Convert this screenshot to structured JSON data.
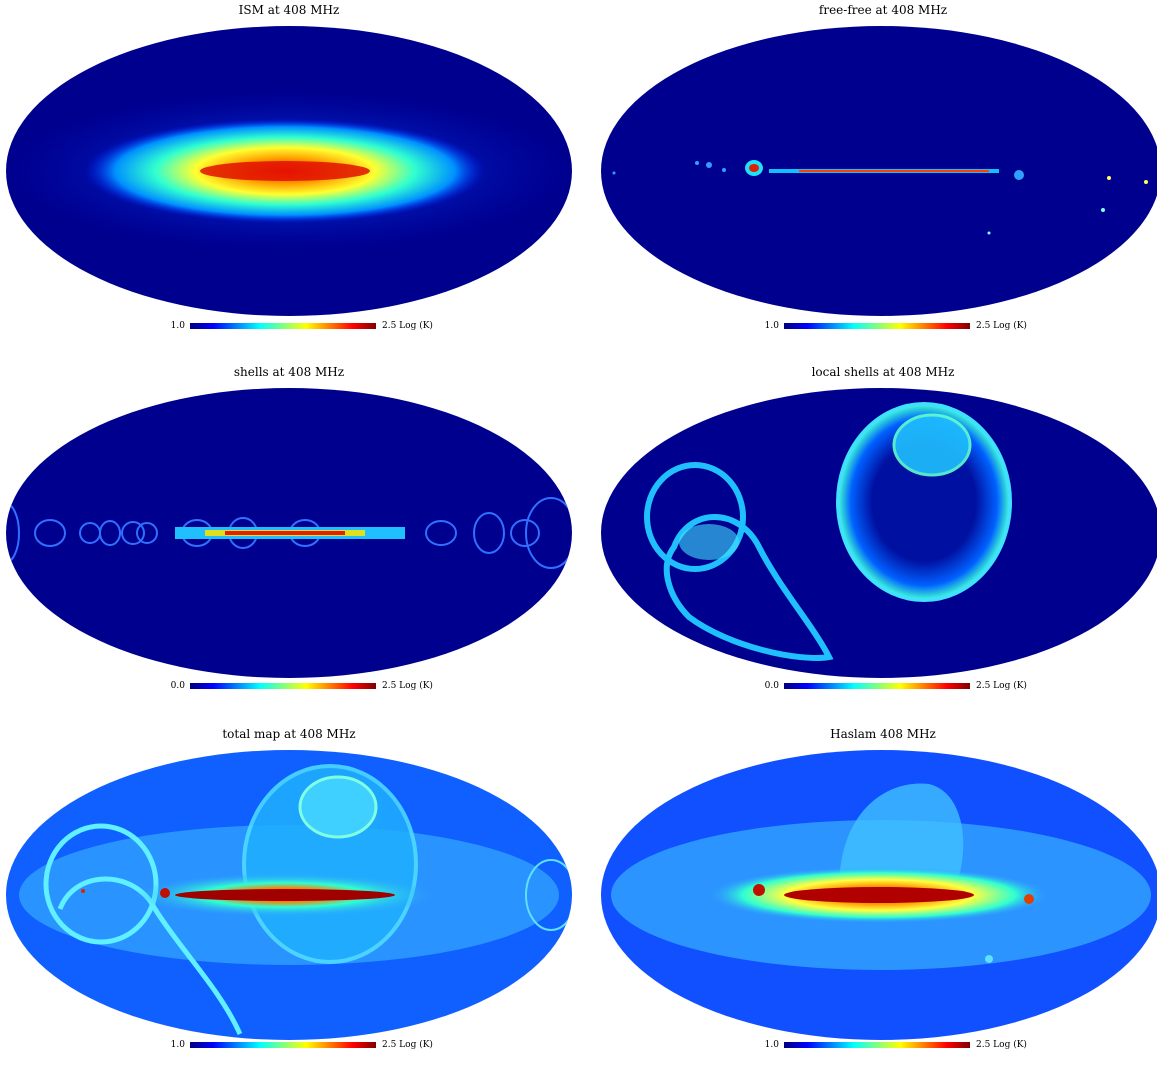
{
  "panels": [
    {
      "id": "ism",
      "title": "ISM at 408 MHz",
      "cb_min": "1.0",
      "cb_max": "2.5 Log (K)"
    },
    {
      "id": "freefree",
      "title": "free-free at 408 MHz",
      "cb_min": "1.0",
      "cb_max": "2.5 Log (K)"
    },
    {
      "id": "shells",
      "title": "shells at 408 MHz",
      "cb_min": "0.0",
      "cb_max": "2.5 Log (K)"
    },
    {
      "id": "local",
      "title": "local shells at 408 MHz",
      "cb_min": "0.0",
      "cb_max": "2.5 Log (K)"
    },
    {
      "id": "total",
      "title": "total map at 408 MHz",
      "cb_min": "1.0",
      "cb_max": "2.5 Log (K)"
    },
    {
      "id": "haslam",
      "title": "Haslam 408 MHz",
      "cb_min": "1.0",
      "cb_max": "2.5 Log (K)"
    }
  ],
  "colormap": [
    "#00007f",
    "#0000ff",
    "#007fff",
    "#00ffff",
    "#7fff7f",
    "#ffff00",
    "#ff7f00",
    "#ff0000",
    "#7f0000"
  ]
}
